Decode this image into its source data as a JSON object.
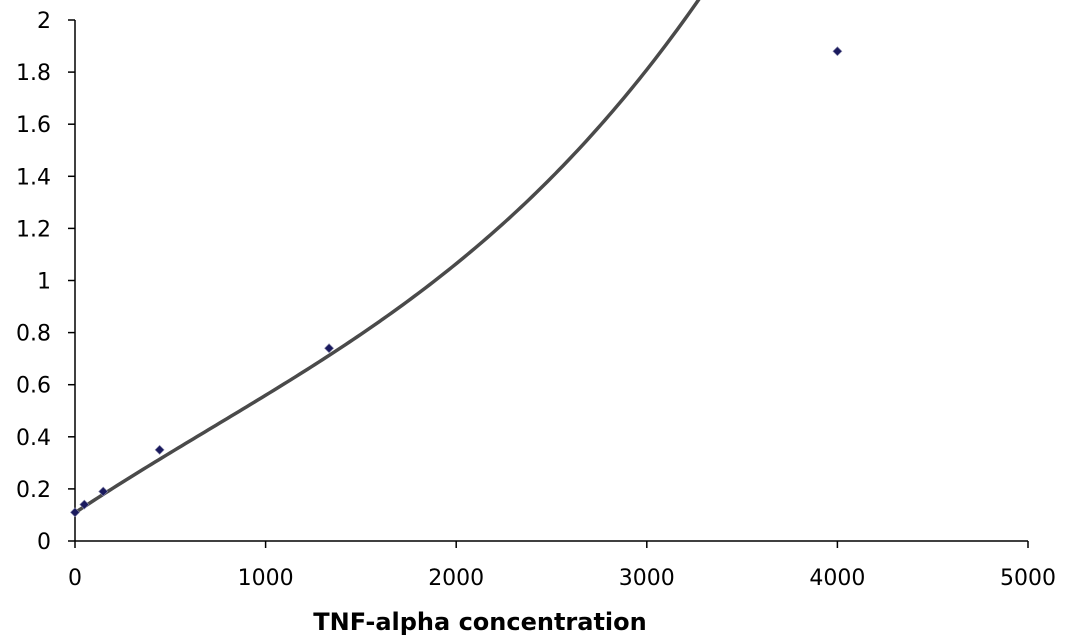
{
  "chart_data": {
    "type": "scatter",
    "title": "",
    "xlabel": "TNF-alpha concentration",
    "ylabel": "",
    "xlim": [
      0,
      5000
    ],
    "ylim": [
      0,
      2
    ],
    "x_ticks": [
      "0",
      "1000",
      "2000",
      "3000",
      "4000",
      "5000"
    ],
    "y_ticks": [
      "0",
      "0.2",
      "0.4",
      "0.6",
      "0.8",
      "1",
      "1.2",
      "1.4",
      "1.6",
      "1.8",
      "2"
    ],
    "grid": false,
    "legend": "none",
    "series": [
      {
        "marker": "diamond",
        "color": "#1a1a5e",
        "points": [
          {
            "x": 0,
            "y": 0.11
          },
          {
            "x": 49,
            "y": 0.14
          },
          {
            "x": 148,
            "y": 0.19
          },
          {
            "x": 444,
            "y": 0.35
          },
          {
            "x": 1333,
            "y": 0.74
          },
          {
            "x": 4000,
            "y": 1.88
          }
        ]
      }
    ],
    "trendline": {
      "type": "polynomial",
      "color": "#4a4a4a",
      "coefficients": [
        0.1084,
        0.000486,
        -6.6e-08,
        3.1e-11
      ]
    }
  }
}
